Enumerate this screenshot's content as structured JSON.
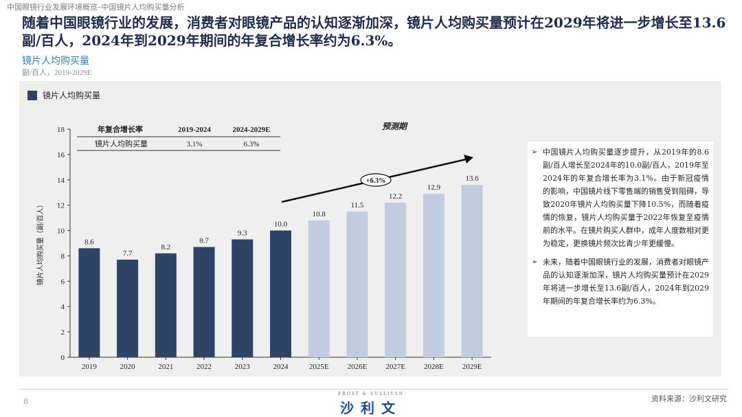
{
  "breadcrumb": "中国眼镜行业发展环境概览–中国镜片人均购买量分析",
  "headline": "随着中国眼镜行业的发展，消费者对眼镜产品的认知逐渐加深，镜片人均购买量预计在2029年将进一步增长至13.6副/百人，2024年到2029年期间的年复合增长率约为6.3%。",
  "chart_subtitle": "镜片人均购买量",
  "chart_unit": "副/百人，2019-2029E",
  "legend_label": "镜片人均购买量",
  "cagr_table": {
    "header": [
      "年复合增长率",
      "2019-2024",
      "2024-2029E"
    ],
    "row": [
      "镜片人均购买量",
      "3.1%",
      "6.3%"
    ]
  },
  "forecast_label": "预测期",
  "growth_badge": "+6.3%",
  "notes": [
    "中国镜片人均购买量逐步提升，从2019年的8.6副/百人增长至2024年的10.0副/百人，2019年至2024年的年复合增长率为3.1%。由于新冠疫情的影响，中国镜片线下零售端的销售受到阻碍，导致2020年镜片人均购买量下降10.5%，而随着疫情的恢复，镜片人均购买量于2022年恢复至疫情前的水平。在镜片购买人群中，成年人度数相对更为稳定，更换镜片频次比青少年更缓慢。",
    "未来，随着中国眼镜行业的发展，消费者对眼镜产品的认知逐渐加深，镜片人均购买量预计在2029年将进一步增长至13.6副/百人，2024年到2029年期间的年复合增长率约为6.3%。"
  ],
  "footer": {
    "page_number": "8",
    "logo_top": "FROST & SULLIVAN",
    "logo_main": "沙利文",
    "source": "资料来源：沙利文研究"
  },
  "colors": {
    "actual": "#2d4467",
    "forecast": "#c1cce0",
    "title": "#1e2b49",
    "subtitle": "#2e7fb0"
  },
  "chart_data": {
    "type": "bar",
    "categories": [
      "2019",
      "2020",
      "2021",
      "2022",
      "2023",
      "2024",
      "2025E",
      "2026E",
      "2027E",
      "2028E",
      "2029E"
    ],
    "values": [
      8.6,
      7.7,
      8.2,
      8.7,
      9.3,
      10.0,
      10.8,
      11.5,
      12.2,
      12.9,
      13.6
    ],
    "value_labels": [
      "8.6",
      "7.7",
      "8.2",
      "8.7",
      "9.3",
      "10.0",
      "10.8",
      "11.5",
      "12.2",
      "12.9",
      "13.6"
    ],
    "forecast_from_index": 6,
    "ylabel": "镜片人均购买量（副/百人）",
    "ylim": [
      0,
      18
    ],
    "yticks": [
      0,
      2,
      4,
      6,
      8,
      10,
      12,
      14,
      16,
      18
    ],
    "grid": false,
    "legend": "top-left"
  }
}
